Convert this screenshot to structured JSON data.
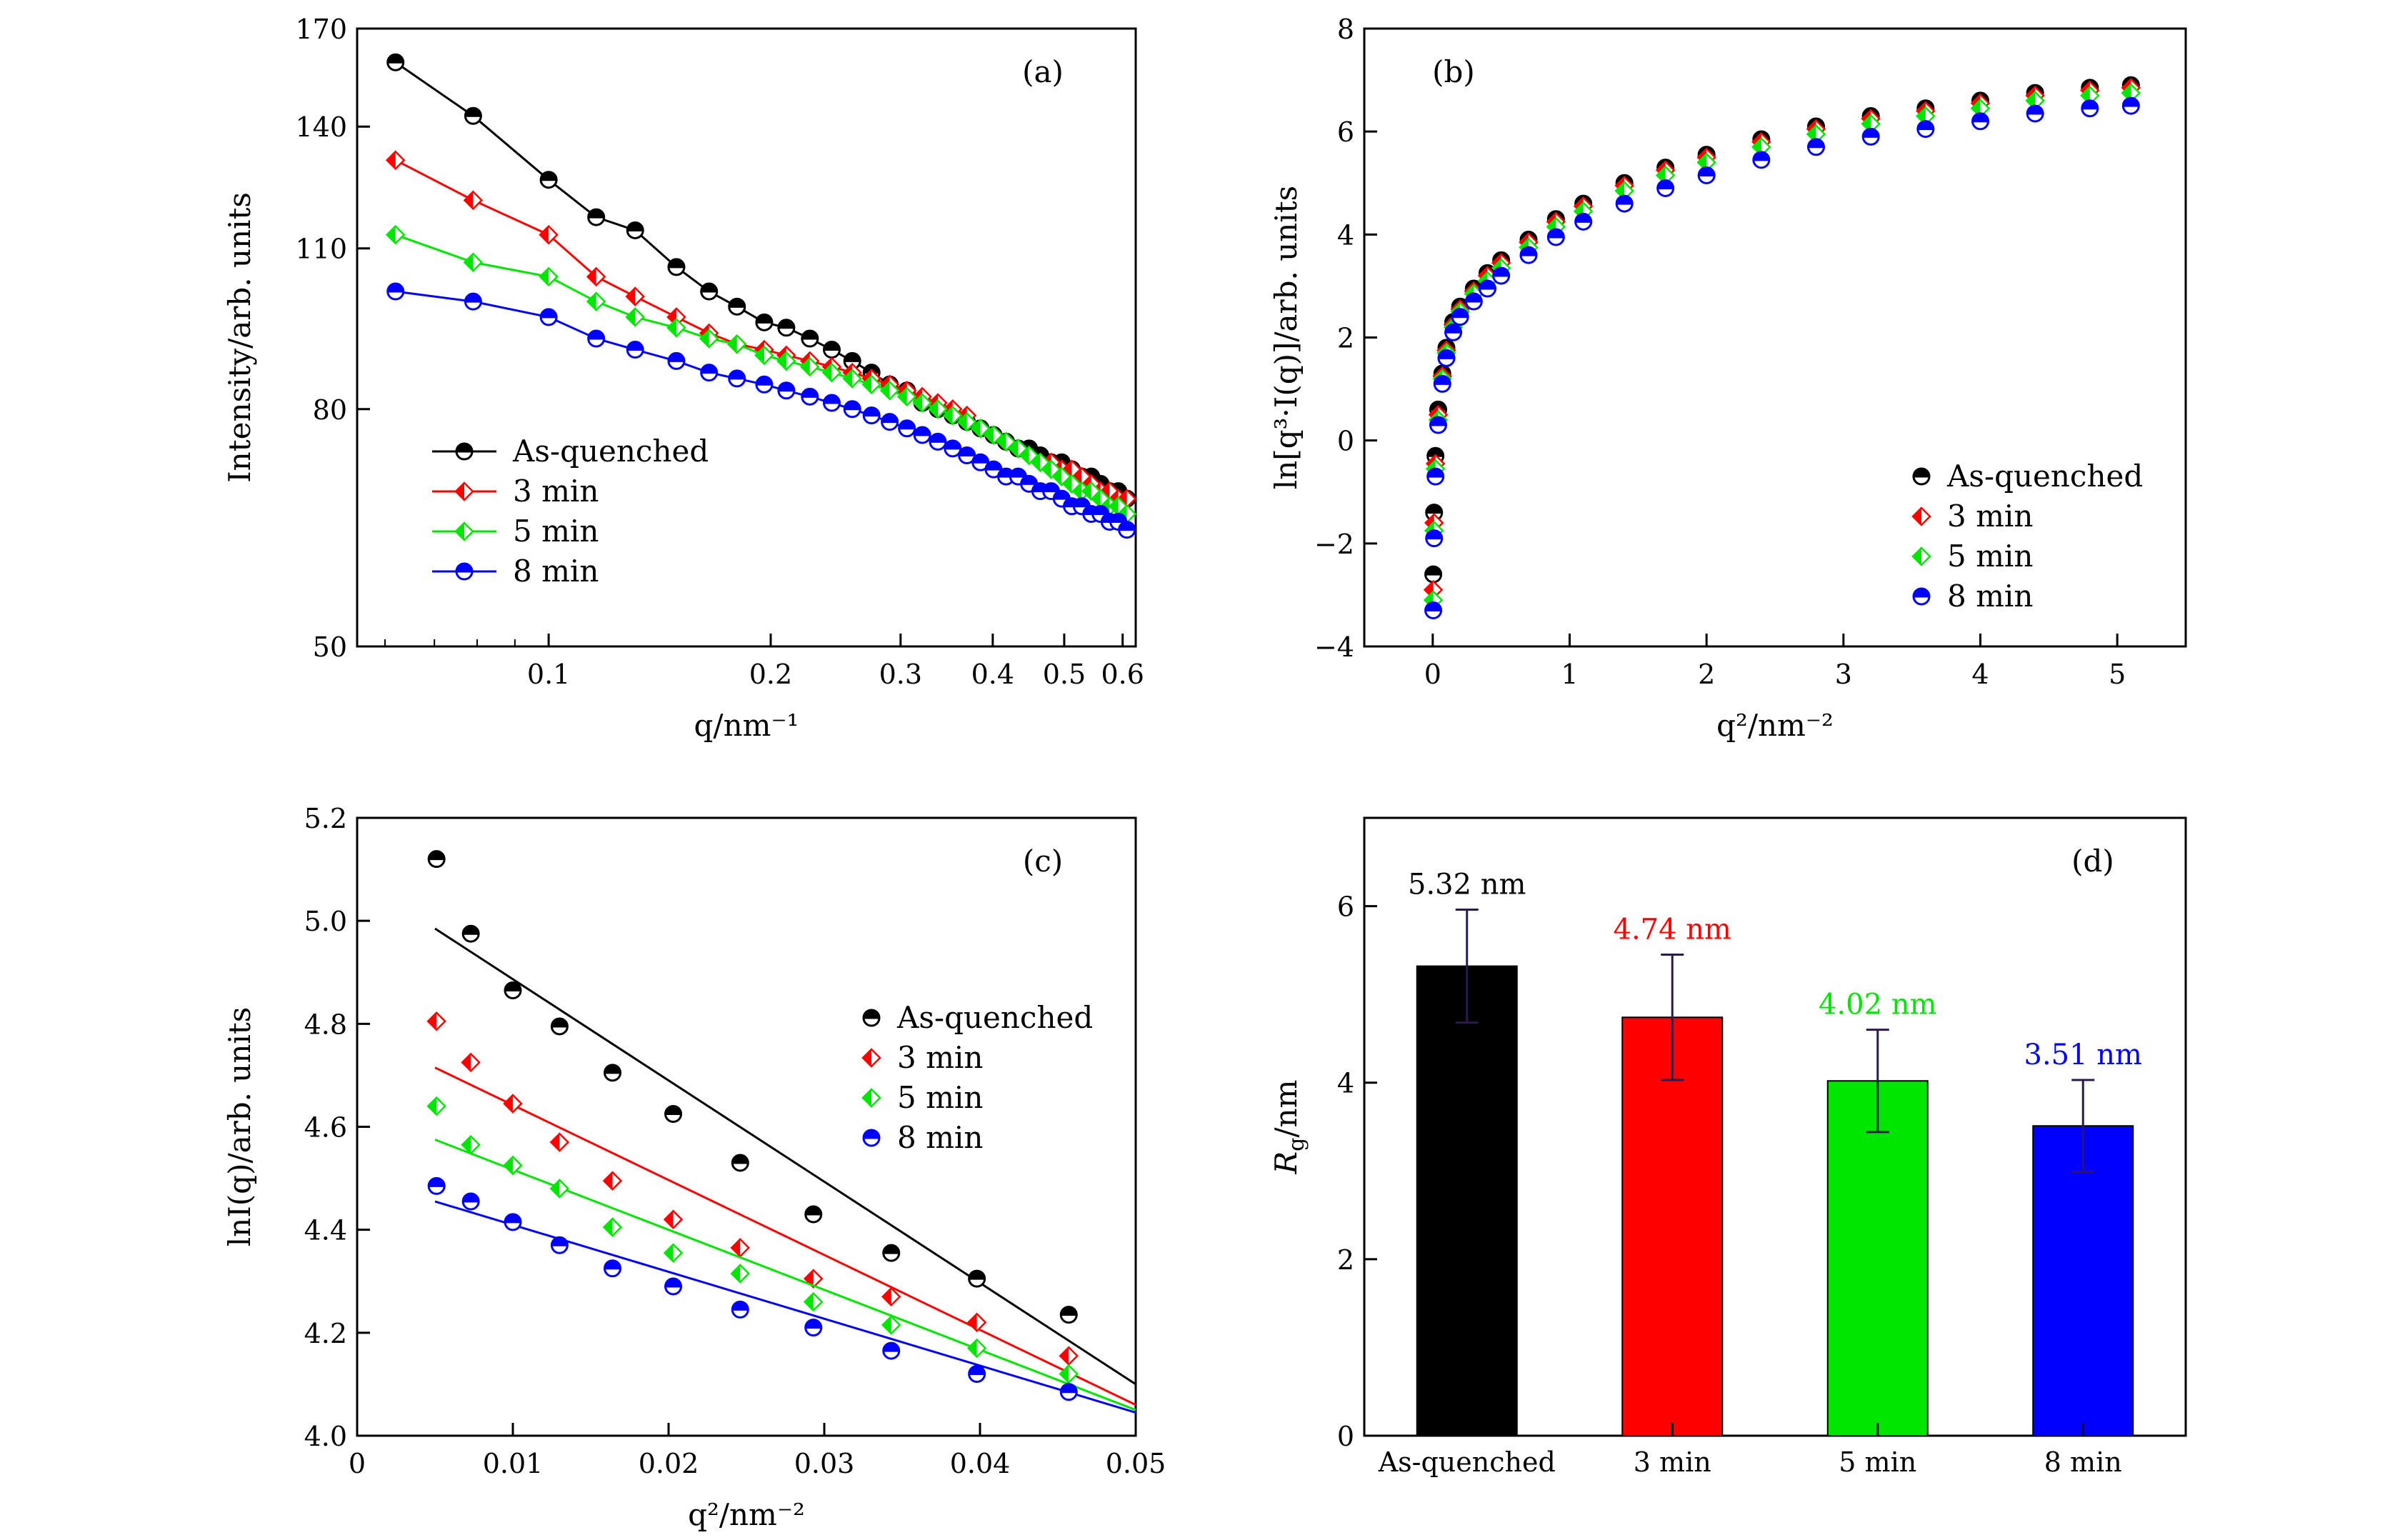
{
  "chart_data": [
    {
      "panel": "(a)",
      "type": "line",
      "scale": "log-log",
      "xlabel": "q/nm⁻¹",
      "ylabel": "Intensity/arb. units",
      "xlim": [
        0.055,
        0.625
      ],
      "ylim": [
        50,
        170
      ],
      "xticks": [
        0.1,
        0.2,
        0.3,
        0.4,
        0.5,
        0.6
      ],
      "xtick_labels": [
        "0.1",
        "0.2",
        "0.3",
        "0.4",
        "0.5",
        "0.6"
      ],
      "yticks": [
        50,
        80,
        110,
        140,
        170
      ],
      "legend_position": "lower-left",
      "x": [
        0.062,
        0.079,
        0.1,
        0.116,
        0.131,
        0.149,
        0.165,
        0.18,
        0.196,
        0.21,
        0.226,
        0.242,
        0.258,
        0.274,
        0.29,
        0.306,
        0.321,
        0.337,
        0.353,
        0.369,
        0.385,
        0.401,
        0.417,
        0.433,
        0.448,
        0.464,
        0.48,
        0.496,
        0.512,
        0.528,
        0.544,
        0.56,
        0.576,
        0.592,
        0.608
      ],
      "series": [
        {
          "name": "As-quenched",
          "color": "#000000",
          "values": [
            159,
            143,
            126,
            117,
            114,
            106,
            101,
            98,
            95,
            94,
            92,
            90,
            88,
            86,
            84,
            83,
            81,
            80,
            79,
            78,
            77,
            76,
            75,
            74,
            74,
            73,
            72,
            72,
            71,
            70,
            70,
            69,
            68,
            68,
            67
          ]
        },
        {
          "name": "3 min",
          "color": "#ff0000",
          "values": [
            131,
            121,
            113,
            104,
            100,
            96,
            93,
            91,
            90,
            89,
            88,
            87,
            86,
            85,
            84,
            83,
            82,
            81,
            80,
            79,
            77,
            76,
            75,
            74,
            73,
            72,
            72,
            71,
            71,
            70,
            69,
            68,
            68,
            67,
            67
          ]
        },
        {
          "name": "5 min",
          "color": "#00e600",
          "values": [
            113,
            107,
            104,
            99,
            96,
            94,
            92,
            91,
            89,
            88,
            87,
            86,
            85,
            84,
            83,
            82,
            81,
            80,
            79,
            78,
            77,
            76,
            75,
            74,
            73,
            72,
            71,
            70,
            69,
            68,
            68,
            67,
            66,
            66,
            65
          ]
        },
        {
          "name": "8 min",
          "color": "#0000ff",
          "values": [
            101,
            99,
            96,
            92,
            90,
            88,
            86,
            85,
            84,
            83,
            82,
            81,
            80,
            79,
            78,
            77,
            76,
            75,
            74,
            73,
            72,
            71,
            70,
            70,
            69,
            68,
            68,
            67,
            66,
            66,
            65,
            65,
            64,
            64,
            63
          ]
        }
      ]
    },
    {
      "panel": "(b)",
      "type": "scatter",
      "xlabel": "q²/nm⁻²",
      "ylabel": "ln[q³·I(q)]/arb. units",
      "xlim": [
        -0.5,
        5.5
      ],
      "ylim": [
        -4,
        8
      ],
      "xticks": [
        0,
        1,
        2,
        3,
        4,
        5
      ],
      "yticks": [
        -4,
        -2,
        0,
        2,
        4,
        6,
        8
      ],
      "legend_position": "lower-right",
      "x": [
        0.004,
        0.01,
        0.02,
        0.04,
        0.07,
        0.1,
        0.15,
        0.2,
        0.3,
        0.4,
        0.5,
        0.7,
        0.9,
        1.1,
        1.4,
        1.7,
        2.0,
        2.4,
        2.8,
        3.2,
        3.6,
        4.0,
        4.4,
        4.8,
        5.1
      ],
      "series": [
        {
          "name": "As-quenched",
          "color": "#000000",
          "values": [
            -2.6,
            -1.4,
            -0.3,
            0.6,
            1.3,
            1.8,
            2.3,
            2.6,
            2.95,
            3.25,
            3.5,
            3.9,
            4.3,
            4.6,
            5.0,
            5.3,
            5.55,
            5.85,
            6.1,
            6.3,
            6.45,
            6.6,
            6.75,
            6.85,
            6.9
          ]
        },
        {
          "name": "3 min",
          "color": "#ff0000",
          "values": [
            -2.9,
            -1.6,
            -0.45,
            0.5,
            1.25,
            1.75,
            2.25,
            2.55,
            2.9,
            3.2,
            3.45,
            3.85,
            4.25,
            4.55,
            4.95,
            5.25,
            5.5,
            5.8,
            6.05,
            6.25,
            6.4,
            6.55,
            6.7,
            6.8,
            6.85
          ]
        },
        {
          "name": "5 min",
          "color": "#00e600",
          "values": [
            -3.1,
            -1.75,
            -0.55,
            0.4,
            1.2,
            1.7,
            2.2,
            2.5,
            2.85,
            3.1,
            3.35,
            3.75,
            4.15,
            4.45,
            4.85,
            5.15,
            5.4,
            5.7,
            5.95,
            6.15,
            6.3,
            6.45,
            6.6,
            6.7,
            6.75
          ]
        },
        {
          "name": "8 min",
          "color": "#0000ff",
          "values": [
            -3.3,
            -1.9,
            -0.7,
            0.3,
            1.1,
            1.6,
            2.1,
            2.4,
            2.7,
            2.95,
            3.2,
            3.6,
            3.95,
            4.25,
            4.6,
            4.9,
            5.15,
            5.45,
            5.7,
            5.9,
            6.05,
            6.2,
            6.35,
            6.45,
            6.5
          ]
        }
      ]
    },
    {
      "panel": "(c)",
      "type": "scatter",
      "xlabel": "q²/nm⁻²",
      "ylabel": "lnI(q)/arb. units",
      "xlim": [
        0,
        0.05
      ],
      "ylim": [
        4.0,
        5.2
      ],
      "xticks": [
        0,
        0.01,
        0.02,
        0.03,
        0.04,
        0.05
      ],
      "xtick_labels": [
        "0",
        "0.01",
        "0.02",
        "0.03",
        "0.04",
        "0.05"
      ],
      "yticks": [
        4.0,
        4.2,
        4.4,
        4.6,
        4.8,
        5.0,
        5.2
      ],
      "ytick_labels": [
        "4.0",
        "4.2",
        "4.4",
        "4.6",
        "4.8",
        "5.0",
        "5.2"
      ],
      "legend_position": "upper-right",
      "x": [
        0.0051,
        0.0073,
        0.01,
        0.013,
        0.0164,
        0.0203,
        0.0246,
        0.0293,
        0.0343,
        0.0398,
        0.0457
      ],
      "series": [
        {
          "name": "As-quenched",
          "color": "#000000",
          "values": [
            5.12,
            4.975,
            4.865,
            4.795,
            4.705,
            4.625,
            4.53,
            4.43,
            4.355,
            4.305,
            4.235
          ],
          "fit": [
            [
              0.005,
              4.985
            ],
            [
              0.05,
              4.1
            ]
          ]
        },
        {
          "name": "3 min",
          "color": "#ff0000",
          "values": [
            4.805,
            4.725,
            4.645,
            4.57,
            4.495,
            4.42,
            4.365,
            4.305,
            4.27,
            4.22,
            4.155
          ],
          "fit": [
            [
              0.005,
              4.715
            ],
            [
              0.05,
              4.06
            ]
          ]
        },
        {
          "name": "5 min",
          "color": "#00e600",
          "values": [
            4.64,
            4.565,
            4.525,
            4.48,
            4.405,
            4.355,
            4.315,
            4.26,
            4.215,
            4.17,
            4.12
          ],
          "fit": [
            [
              0.005,
              4.575
            ],
            [
              0.05,
              4.05
            ]
          ]
        },
        {
          "name": "8 min",
          "color": "#0000ff",
          "values": [
            4.485,
            4.455,
            4.415,
            4.37,
            4.325,
            4.29,
            4.245,
            4.21,
            4.165,
            4.12,
            4.085
          ],
          "fit": [
            [
              0.005,
              4.455
            ],
            [
              0.05,
              4.045
            ]
          ]
        }
      ]
    },
    {
      "panel": "(d)",
      "type": "bar",
      "xlabel": "",
      "ylabel": "Rg/nm",
      "ylim": [
        0,
        7
      ],
      "yticks": [
        0,
        2,
        4,
        6
      ],
      "categories": [
        "As-quenched",
        "3 min",
        "5 min",
        "8 min"
      ],
      "values": [
        5.32,
        4.74,
        4.02,
        3.51
      ],
      "errors": [
        0.64,
        0.71,
        0.58,
        0.52
      ],
      "value_labels": [
        "5.32 nm",
        "4.74 nm",
        "4.02 nm",
        "3.51 nm"
      ],
      "colors": [
        "#000000",
        "#ff0000",
        "#00e600",
        "#0000ff"
      ],
      "errorbar_color": "#2b1a4d"
    }
  ]
}
